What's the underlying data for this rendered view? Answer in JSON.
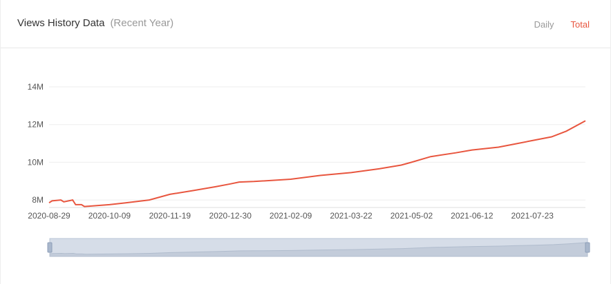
{
  "header": {
    "title": "Views History Data",
    "subtitle": "(Recent Year)",
    "tabs": [
      {
        "label": "Daily",
        "active": false
      },
      {
        "label": "Total",
        "active": true
      }
    ]
  },
  "colors": {
    "line": "#e8553e",
    "grid": "#eeeeee",
    "slider_fill": "#d6dde8",
    "slider_border": "#b8c4d6",
    "inactive_tab": "#999999",
    "active_tab": "#e8553e"
  },
  "chart_data": {
    "type": "line",
    "title": "",
    "xlabel": "",
    "ylabel": "",
    "x_tick_labels": [
      "2020-08-29",
      "2020-10-09",
      "2020-11-19",
      "2020-12-30",
      "2021-02-09",
      "2021-03-22",
      "2021-05-02",
      "2021-06-12",
      "2021-07-23"
    ],
    "y_tick_labels": [
      "8M",
      "10M",
      "12M",
      "14M"
    ],
    "y_ticks": [
      8000000,
      10000000,
      12000000,
      14000000
    ],
    "ylim": [
      7600000,
      14000000
    ],
    "xlim": [
      "2020-08-29",
      "2021-08-28"
    ],
    "grid": true,
    "series": [
      {
        "points": [
          [
            "2020-08-29",
            7850000
          ],
          [
            "2020-08-31",
            7950000
          ],
          [
            "2020-09-06",
            8000000
          ],
          [
            "2020-09-08",
            7900000
          ],
          [
            "2020-09-14",
            8000000
          ],
          [
            "2020-09-16",
            7750000
          ],
          [
            "2020-09-20",
            7750000
          ],
          [
            "2020-09-22",
            7650000
          ],
          [
            "2020-10-09",
            7750000
          ],
          [
            "2020-10-20",
            7850000
          ],
          [
            "2020-11-05",
            8000000
          ],
          [
            "2020-11-19",
            8300000
          ],
          [
            "2020-12-05",
            8500000
          ],
          [
            "2020-12-20",
            8700000
          ],
          [
            "2020-12-30",
            8850000
          ],
          [
            "2021-01-05",
            8950000
          ],
          [
            "2021-01-15",
            8980000
          ],
          [
            "2021-02-09",
            9100000
          ],
          [
            "2021-03-01",
            9300000
          ],
          [
            "2021-03-22",
            9450000
          ],
          [
            "2021-04-10",
            9650000
          ],
          [
            "2021-04-25",
            9850000
          ],
          [
            "2021-05-02",
            10000000
          ],
          [
            "2021-05-15",
            10300000
          ],
          [
            "2021-06-01",
            10500000
          ],
          [
            "2021-06-12",
            10650000
          ],
          [
            "2021-06-30",
            10800000
          ],
          [
            "2021-07-10",
            10950000
          ],
          [
            "2021-07-23",
            11150000
          ],
          [
            "2021-08-05",
            11350000
          ],
          [
            "2021-08-15",
            11650000
          ],
          [
            "2021-08-28",
            12200000
          ]
        ]
      }
    ]
  }
}
